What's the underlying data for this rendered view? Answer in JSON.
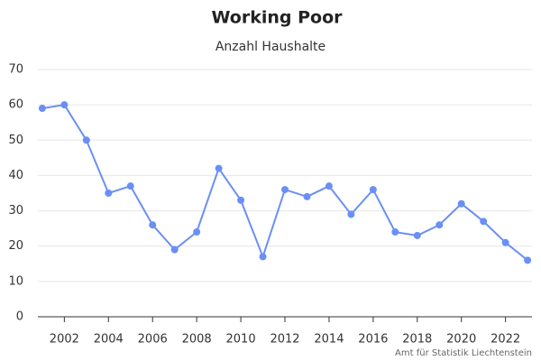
{
  "chart_data": {
    "type": "line",
    "title": "Working Poor",
    "subtitle": "Anzahl Haushalte",
    "source": "Amt für Statistik Liechtenstein",
    "x": [
      2001,
      2002,
      2003,
      2004,
      2005,
      2006,
      2007,
      2008,
      2009,
      2010,
      2011,
      2012,
      2013,
      2014,
      2015,
      2016,
      2017,
      2018,
      2019,
      2020,
      2021,
      2022,
      2023
    ],
    "series": [
      {
        "name": "Anzahl Haushalte",
        "color": "#6a8ff5",
        "values": [
          59,
          60,
          50,
          35,
          37,
          26,
          19,
          24,
          42,
          33,
          17,
          36,
          34,
          37,
          29,
          36,
          24,
          23,
          26,
          32,
          27,
          21,
          16
        ]
      }
    ],
    "xlim": [
      2000.8,
      2023.2
    ],
    "xticks": [
      2002,
      2004,
      2006,
      2008,
      2010,
      2012,
      2014,
      2016,
      2018,
      2020,
      2022
    ],
    "ylim": [
      0,
      70
    ],
    "yticks": [
      0,
      10,
      20,
      30,
      40,
      50,
      60,
      70
    ],
    "grid": true
  }
}
